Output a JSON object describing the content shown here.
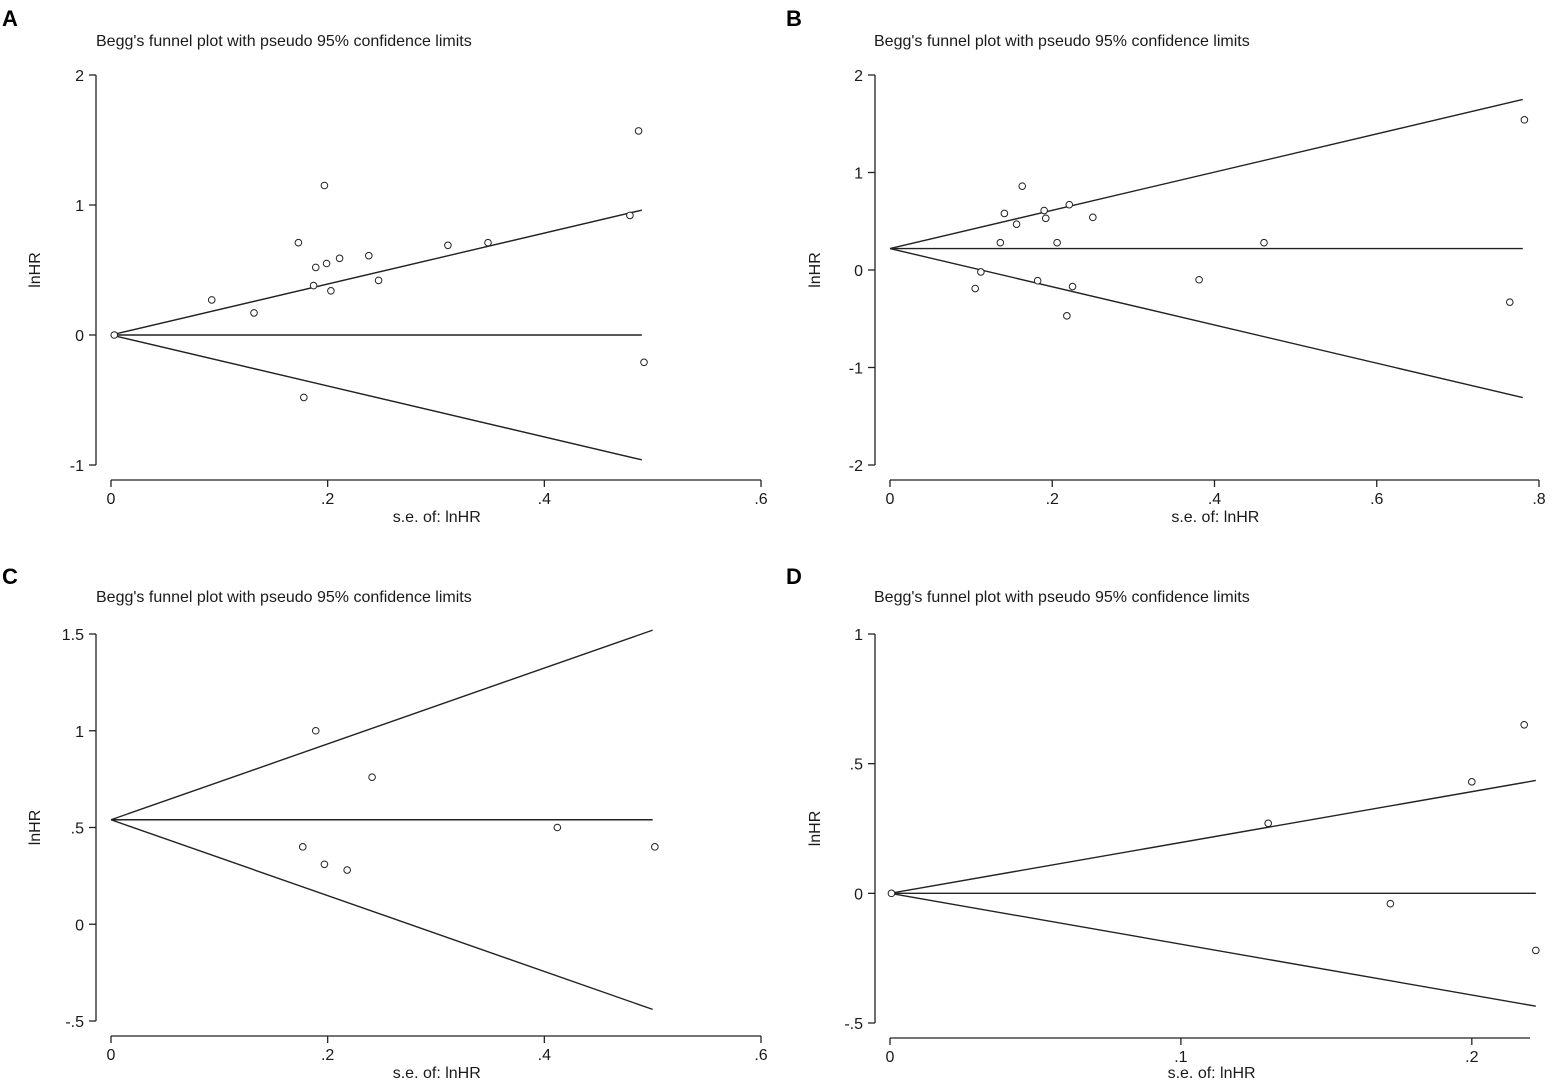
{
  "chart_data": [
    {
      "panel": "A",
      "type": "scatter",
      "title": "Begg's funnel plot with pseudo 95% confidence limits",
      "xlabel": "s.e. of: lnHR",
      "ylabel": "lnHR",
      "xlim": [
        0,
        0.6
      ],
      "ylim": [
        -1,
        2
      ],
      "xticks": [
        0,
        0.2,
        0.4,
        0.6
      ],
      "xtick_labels": [
        "0",
        ".2",
        ".4",
        ".6"
      ],
      "yticks": [
        -1,
        0,
        1,
        2
      ],
      "ytick_labels": [
        "-1",
        "0",
        "1",
        "2"
      ],
      "pooled_estimate": 0.0,
      "funnel_max_se": 0.49,
      "points": [
        {
          "x": 0.003,
          "y": 0.0
        },
        {
          "x": 0.093,
          "y": 0.27
        },
        {
          "x": 0.132,
          "y": 0.17
        },
        {
          "x": 0.173,
          "y": 0.71
        },
        {
          "x": 0.178,
          "y": -0.48
        },
        {
          "x": 0.187,
          "y": 0.38
        },
        {
          "x": 0.189,
          "y": 0.52
        },
        {
          "x": 0.197,
          "y": 1.15
        },
        {
          "x": 0.199,
          "y": 0.55
        },
        {
          "x": 0.203,
          "y": 0.34
        },
        {
          "x": 0.211,
          "y": 0.59
        },
        {
          "x": 0.238,
          "y": 0.61
        },
        {
          "x": 0.247,
          "y": 0.42
        },
        {
          "x": 0.311,
          "y": 0.69
        },
        {
          "x": 0.348,
          "y": 0.71
        },
        {
          "x": 0.479,
          "y": 0.92
        },
        {
          "x": 0.487,
          "y": 1.57
        },
        {
          "x": 0.492,
          "y": -0.21
        }
      ]
    },
    {
      "panel": "B",
      "type": "scatter",
      "title": "Begg's funnel plot with pseudo 95% confidence limits",
      "xlabel": "s.e. of: lnHR",
      "ylabel": "lnHR",
      "xlim": [
        0,
        0.8
      ],
      "ylim": [
        -2,
        2
      ],
      "xticks": [
        0,
        0.2,
        0.4,
        0.6,
        0.8
      ],
      "xtick_labels": [
        "0",
        ".2",
        ".4",
        ".6",
        ".8"
      ],
      "yticks": [
        -2,
        -1,
        0,
        1,
        2
      ],
      "ytick_labels": [
        "-2",
        "-1",
        "0",
        "1",
        "2"
      ],
      "pooled_estimate": 0.22,
      "funnel_max_se": 0.78,
      "points": [
        {
          "x": 0.105,
          "y": -0.19
        },
        {
          "x": 0.112,
          "y": -0.02
        },
        {
          "x": 0.136,
          "y": 0.28
        },
        {
          "x": 0.141,
          "y": 0.58
        },
        {
          "x": 0.156,
          "y": 0.47
        },
        {
          "x": 0.163,
          "y": 0.86
        },
        {
          "x": 0.182,
          "y": -0.11
        },
        {
          "x": 0.19,
          "y": 0.61
        },
        {
          "x": 0.192,
          "y": 0.53
        },
        {
          "x": 0.206,
          "y": 0.28
        },
        {
          "x": 0.218,
          "y": -0.47
        },
        {
          "x": 0.221,
          "y": 0.67
        },
        {
          "x": 0.225,
          "y": -0.17
        },
        {
          "x": 0.25,
          "y": 0.54
        },
        {
          "x": 0.381,
          "y": -0.1
        },
        {
          "x": 0.461,
          "y": 0.28
        },
        {
          "x": 0.764,
          "y": -0.33
        },
        {
          "x": 0.782,
          "y": 1.54
        }
      ]
    },
    {
      "panel": "C",
      "type": "scatter",
      "title": "Begg's funnel plot with pseudo 95% confidence limits",
      "xlabel": "s.e. of: lnHR",
      "ylabel": "lnHR",
      "xlim": [
        0,
        0.6
      ],
      "ylim": [
        -0.5,
        1.5
      ],
      "xticks": [
        0,
        0.2,
        0.4,
        0.6
      ],
      "xtick_labels": [
        "0",
        ".2",
        ".4",
        ".6"
      ],
      "yticks": [
        -0.5,
        0,
        0.5,
        1,
        1.5
      ],
      "ytick_labels": [
        "-.5",
        "0",
        ".5",
        "1",
        "1.5"
      ],
      "pooled_estimate": 0.54,
      "funnel_max_se": 0.5,
      "points": [
        {
          "x": 0.177,
          "y": 0.4
        },
        {
          "x": 0.189,
          "y": 1.0
        },
        {
          "x": 0.197,
          "y": 0.31
        },
        {
          "x": 0.218,
          "y": 0.28
        },
        {
          "x": 0.241,
          "y": 0.76
        },
        {
          "x": 0.412,
          "y": 0.5
        },
        {
          "x": 0.502,
          "y": 0.4
        }
      ]
    },
    {
      "panel": "D",
      "type": "scatter",
      "title": "Begg's funnel plot with pseudo 95% confidence limits",
      "xlabel": "s.e. of: lnHR",
      "ylabel": "lnHR",
      "xlim": [
        0,
        0.22
      ],
      "ylim": [
        -0.5,
        1
      ],
      "xticks": [
        0,
        0.1,
        0.2
      ],
      "xtick_labels": [
        "0",
        ".1",
        ".2"
      ],
      "yticks": [
        -0.5,
        0,
        0.5,
        1
      ],
      "ytick_labels": [
        "-.5",
        "0",
        ".5",
        "1"
      ],
      "pooled_estimate": 0.0,
      "funnel_max_se": 0.222,
      "points": [
        {
          "x": 0.0005,
          "y": 0.0
        },
        {
          "x": 0.13,
          "y": 0.27
        },
        {
          "x": 0.172,
          "y": -0.04
        },
        {
          "x": 0.2,
          "y": 0.43
        },
        {
          "x": 0.218,
          "y": 0.65
        },
        {
          "x": 0.222,
          "y": -0.22
        }
      ]
    }
  ]
}
